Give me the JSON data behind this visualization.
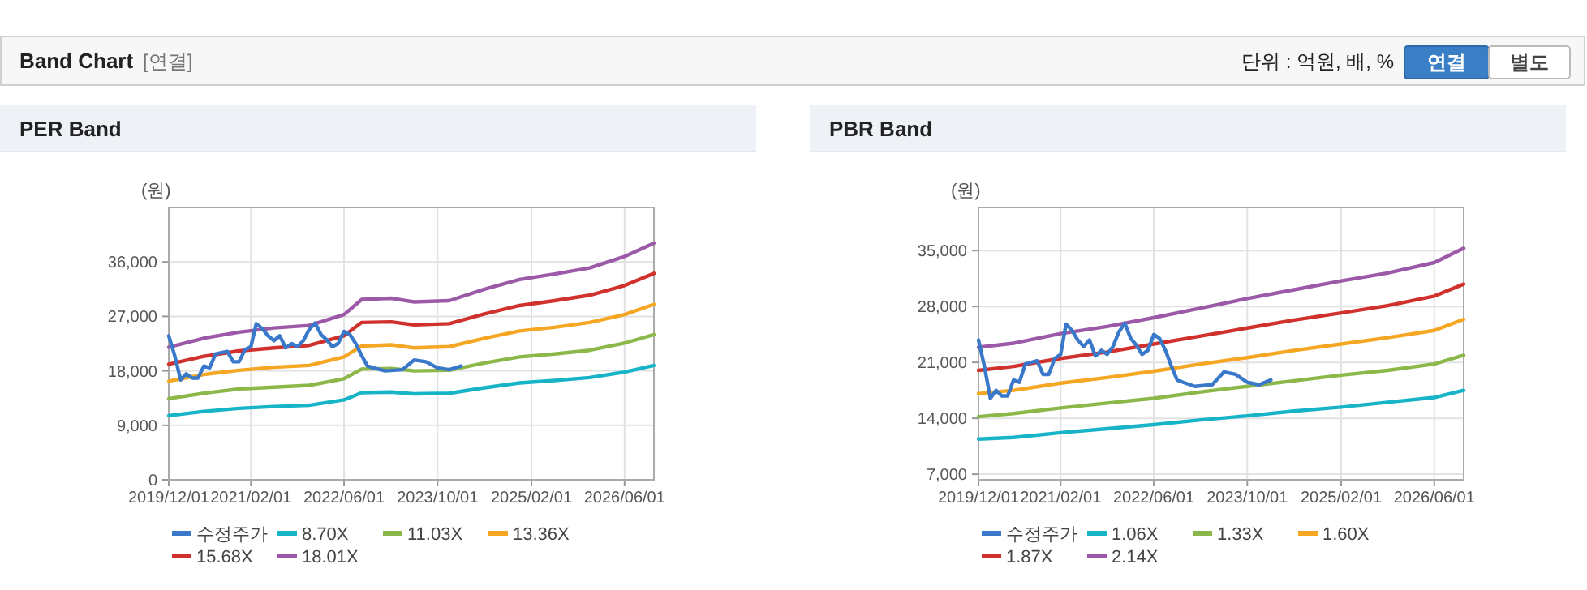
{
  "chart_data": [
    {
      "type": "line",
      "title": "PER Band",
      "ylabel": "(원)",
      "annotations": [
        "Band Chart",
        "[연결]",
        "단위 : 억원, 배, %",
        "연결",
        "별도"
      ],
      "xlim": [
        "2019-12-01",
        "2026-11-01"
      ],
      "xticks": [
        {
          "value": "2019-12-01",
          "label": "2019/12/01"
        },
        {
          "value": "2021-02-01",
          "label": "2021/02/01"
        },
        {
          "value": "2022-06-01",
          "label": "2022/06/01"
        },
        {
          "value": "2023-10-01",
          "label": "2023/10/01"
        },
        {
          "value": "2025-02-01",
          "label": "2025/02/01"
        },
        {
          "value": "2026-06-01",
          "label": "2026/06/01"
        }
      ],
      "ylim": [
        0,
        45000
      ],
      "yticks": [
        {
          "value": 0,
          "label": "0"
        },
        {
          "value": 9000,
          "label": "9,000"
        },
        {
          "value": 18000,
          "label": "18,000"
        },
        {
          "value": 27000,
          "label": "27,000"
        },
        {
          "value": 36000,
          "label": "36,000"
        }
      ],
      "grid": true,
      "legend": "bottom",
      "series": [
        {
          "name": "수정주가",
          "color": "#3a78c9",
          "x": [
            "2019-12",
            "2020-01",
            "2020-02",
            "2020-03",
            "2020-04",
            "2020-05",
            "2020-06",
            "2020-07",
            "2020-08",
            "2020-09",
            "2020-10",
            "2020-11",
            "2020-12",
            "2021-01",
            "2021-02",
            "2021-03",
            "2021-04",
            "2021-05",
            "2021-06",
            "2021-07",
            "2021-08",
            "2021-09",
            "2021-10",
            "2021-11",
            "2021-12",
            "2022-01",
            "2022-02",
            "2022-03",
            "2022-04",
            "2022-05",
            "2022-06",
            "2022-07",
            "2022-08",
            "2022-09",
            "2022-10",
            "2022-11",
            "2023-01",
            "2023-04",
            "2023-06",
            "2023-08",
            "2023-10",
            "2023-12",
            "2024-02"
          ],
          "values": [
            23800,
            20500,
            16500,
            17500,
            16800,
            16800,
            18800,
            18500,
            20800,
            21000,
            21200,
            19500,
            19500,
            21500,
            22000,
            25800,
            25000,
            23800,
            23000,
            23800,
            21800,
            22500,
            22000,
            23000,
            24800,
            25900,
            24000,
            23200,
            22000,
            22500,
            24500,
            24000,
            22500,
            20500,
            18800,
            18500,
            18000,
            18200,
            19800,
            19500,
            18500,
            18200,
            18800
          ]
        },
        {
          "name": "8.70X",
          "color": "#17b3c7",
          "x": [
            "2019-12",
            "2020-06",
            "2020-12",
            "2021-06",
            "2021-12",
            "2022-06",
            "2022-09",
            "2023-02",
            "2023-06",
            "2023-12",
            "2024-06",
            "2024-12",
            "2025-06",
            "2025-12",
            "2026-06",
            "2026-11"
          ],
          "values": [
            10600,
            11300,
            11800,
            12100,
            12300,
            13200,
            14400,
            14500,
            14200,
            14300,
            15200,
            16000,
            16400,
            16900,
            17800,
            18900
          ]
        },
        {
          "name": "11.03X",
          "color": "#8cb84a",
          "x": [
            "2019-12",
            "2020-06",
            "2020-12",
            "2021-06",
            "2021-12",
            "2022-06",
            "2022-09",
            "2023-02",
            "2023-06",
            "2023-12",
            "2024-06",
            "2024-12",
            "2025-06",
            "2025-12",
            "2026-06",
            "2026-11"
          ],
          "values": [
            13400,
            14300,
            15000,
            15300,
            15600,
            16700,
            18300,
            18400,
            18000,
            18100,
            19300,
            20300,
            20800,
            21400,
            22600,
            24000
          ]
        },
        {
          "name": "13.36X",
          "color": "#f5a623",
          "x": [
            "2019-12",
            "2020-06",
            "2020-12",
            "2021-06",
            "2021-12",
            "2022-06",
            "2022-09",
            "2023-02",
            "2023-06",
            "2023-12",
            "2024-06",
            "2024-12",
            "2025-06",
            "2025-12",
            "2026-06",
            "2026-11"
          ],
          "values": [
            16300,
            17400,
            18100,
            18600,
            18900,
            20300,
            22100,
            22300,
            21800,
            22000,
            23400,
            24600,
            25200,
            26000,
            27300,
            29000
          ]
        },
        {
          "name": "15.68X",
          "color": "#d0312d",
          "x": [
            "2019-12",
            "2020-06",
            "2020-12",
            "2021-06",
            "2021-12",
            "2022-06",
            "2022-09",
            "2023-02",
            "2023-06",
            "2023-12",
            "2024-06",
            "2024-12",
            "2025-06",
            "2025-12",
            "2026-06",
            "2026-11"
          ],
          "values": [
            19100,
            20400,
            21300,
            21800,
            22200,
            23800,
            26000,
            26100,
            25600,
            25800,
            27400,
            28800,
            29600,
            30500,
            32100,
            34100
          ]
        },
        {
          "name": "18.01X",
          "color": "#9b59a8",
          "x": [
            "2019-12",
            "2020-06",
            "2020-12",
            "2021-06",
            "2021-12",
            "2022-06",
            "2022-09",
            "2023-02",
            "2023-06",
            "2023-12",
            "2024-06",
            "2024-12",
            "2025-06",
            "2025-12",
            "2026-06",
            "2026-11"
          ],
          "values": [
            21900,
            23400,
            24400,
            25100,
            25500,
            27300,
            29800,
            30000,
            29400,
            29600,
            31500,
            33100,
            34000,
            35000,
            36900,
            39100
          ]
        }
      ]
    },
    {
      "type": "line",
      "title": "PBR Band",
      "ylabel": "(원)",
      "xlim": [
        "2019-12-01",
        "2026-11-01"
      ],
      "xticks": [
        {
          "value": "2019-12-01",
          "label": "2019/12/01"
        },
        {
          "value": "2021-02-01",
          "label": "2021/02/01"
        },
        {
          "value": "2022-06-01",
          "label": "2022/06/01"
        },
        {
          "value": "2023-10-01",
          "label": "2023/10/01"
        },
        {
          "value": "2025-02-01",
          "label": "2025/02/01"
        },
        {
          "value": "2026-06-01",
          "label": "2026/06/01"
        }
      ],
      "ylim": [
        6300,
        40400
      ],
      "yticks": [
        {
          "value": 7000,
          "label": "7,000"
        },
        {
          "value": 14000,
          "label": "14,000"
        },
        {
          "value": 21000,
          "label": "21,000"
        },
        {
          "value": 28000,
          "label": "28,000"
        },
        {
          "value": 35000,
          "label": "35,000"
        }
      ],
      "grid": true,
      "legend": "bottom",
      "series": [
        {
          "name": "수정주가",
          "color": "#3a78c9",
          "x": [
            "2019-12",
            "2020-01",
            "2020-02",
            "2020-03",
            "2020-04",
            "2020-05",
            "2020-06",
            "2020-07",
            "2020-08",
            "2020-09",
            "2020-10",
            "2020-11",
            "2020-12",
            "2021-01",
            "2021-02",
            "2021-03",
            "2021-04",
            "2021-05",
            "2021-06",
            "2021-07",
            "2021-08",
            "2021-09",
            "2021-10",
            "2021-11",
            "2021-12",
            "2022-01",
            "2022-02",
            "2022-03",
            "2022-04",
            "2022-05",
            "2022-06",
            "2022-07",
            "2022-08",
            "2022-09",
            "2022-10",
            "2022-11",
            "2023-01",
            "2023-04",
            "2023-06",
            "2023-08",
            "2023-10",
            "2023-12",
            "2024-02"
          ],
          "values": [
            23800,
            20500,
            16500,
            17500,
            16800,
            16800,
            18800,
            18500,
            20800,
            21000,
            21200,
            19500,
            19500,
            21500,
            22000,
            25800,
            25000,
            23800,
            23000,
            23800,
            21800,
            22500,
            22000,
            23000,
            24800,
            25900,
            24000,
            23200,
            22000,
            22500,
            24500,
            24000,
            22500,
            20500,
            18800,
            18500,
            18000,
            18200,
            19800,
            19500,
            18500,
            18200,
            18800
          ]
        },
        {
          "name": "1.06X",
          "color": "#17b3c7",
          "x": [
            "2019-12",
            "2020-06",
            "2021-02",
            "2021-10",
            "2022-06",
            "2023-02",
            "2023-10",
            "2024-06",
            "2025-02",
            "2025-10",
            "2026-06",
            "2026-11"
          ],
          "values": [
            11400,
            11600,
            12200,
            12700,
            13200,
            13800,
            14300,
            14900,
            15400,
            16000,
            16600,
            17500
          ]
        },
        {
          "name": "1.33X",
          "color": "#8cb84a",
          "x": [
            "2019-12",
            "2020-06",
            "2021-02",
            "2021-10",
            "2022-06",
            "2023-02",
            "2023-10",
            "2024-06",
            "2025-02",
            "2025-10",
            "2026-06",
            "2026-11"
          ],
          "values": [
            14200,
            14600,
            15300,
            15900,
            16500,
            17300,
            18000,
            18700,
            19400,
            20000,
            20800,
            21900
          ]
        },
        {
          "name": "1.60X",
          "color": "#f5a623",
          "x": [
            "2019-12",
            "2020-06",
            "2021-02",
            "2021-10",
            "2022-06",
            "2023-02",
            "2023-10",
            "2024-06",
            "2025-02",
            "2025-10",
            "2026-06",
            "2026-11"
          ],
          "values": [
            17100,
            17500,
            18400,
            19100,
            19900,
            20800,
            21600,
            22500,
            23300,
            24100,
            25000,
            26400
          ]
        },
        {
          "name": "1.87X",
          "color": "#d0312d",
          "x": [
            "2019-12",
            "2020-06",
            "2021-02",
            "2021-10",
            "2022-06",
            "2023-02",
            "2023-10",
            "2024-06",
            "2025-02",
            "2025-10",
            "2026-06",
            "2026-11"
          ],
          "values": [
            20000,
            20500,
            21500,
            22300,
            23300,
            24300,
            25300,
            26300,
            27200,
            28100,
            29300,
            30800
          ]
        },
        {
          "name": "2.14X",
          "color": "#9b59a8",
          "x": [
            "2019-12",
            "2020-06",
            "2021-02",
            "2021-10",
            "2022-06",
            "2023-02",
            "2023-10",
            "2024-06",
            "2025-02",
            "2025-10",
            "2026-06",
            "2026-11"
          ],
          "values": [
            22900,
            23400,
            24600,
            25500,
            26600,
            27800,
            29000,
            30100,
            31200,
            32200,
            33500,
            35300
          ]
        }
      ]
    }
  ]
}
